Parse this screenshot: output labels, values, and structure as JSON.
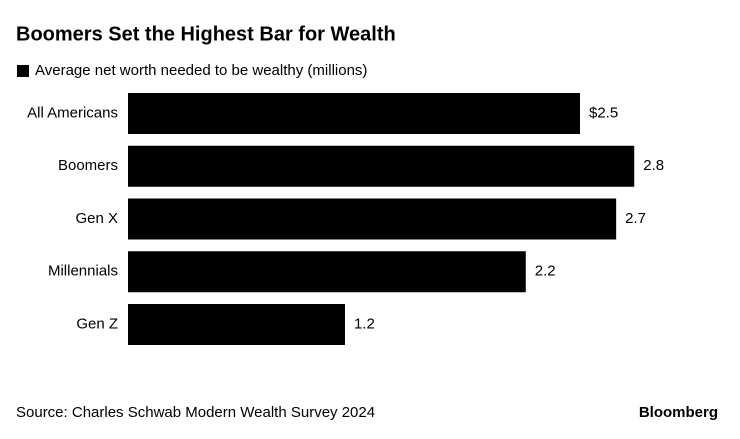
{
  "chart_data": {
    "type": "bar",
    "orientation": "horizontal",
    "title": "Boomers Set the Highest Bar for Wealth",
    "categories": [
      "All Americans",
      "Boomers",
      "Gen X",
      "Millennials",
      "Gen Z"
    ],
    "series": [
      {
        "name": "Average net worth needed to be wealthy (millions)",
        "color": "#000000",
        "values": [
          2.5,
          2.8,
          2.7,
          2.2,
          1.2
        ],
        "value_labels": [
          "$2.5",
          "2.8",
          "2.7",
          "2.2",
          "1.2"
        ]
      }
    ],
    "source": "Source: Charles Schwab Modern Wealth Survey 2024",
    "brand": "Bloomberg"
  }
}
